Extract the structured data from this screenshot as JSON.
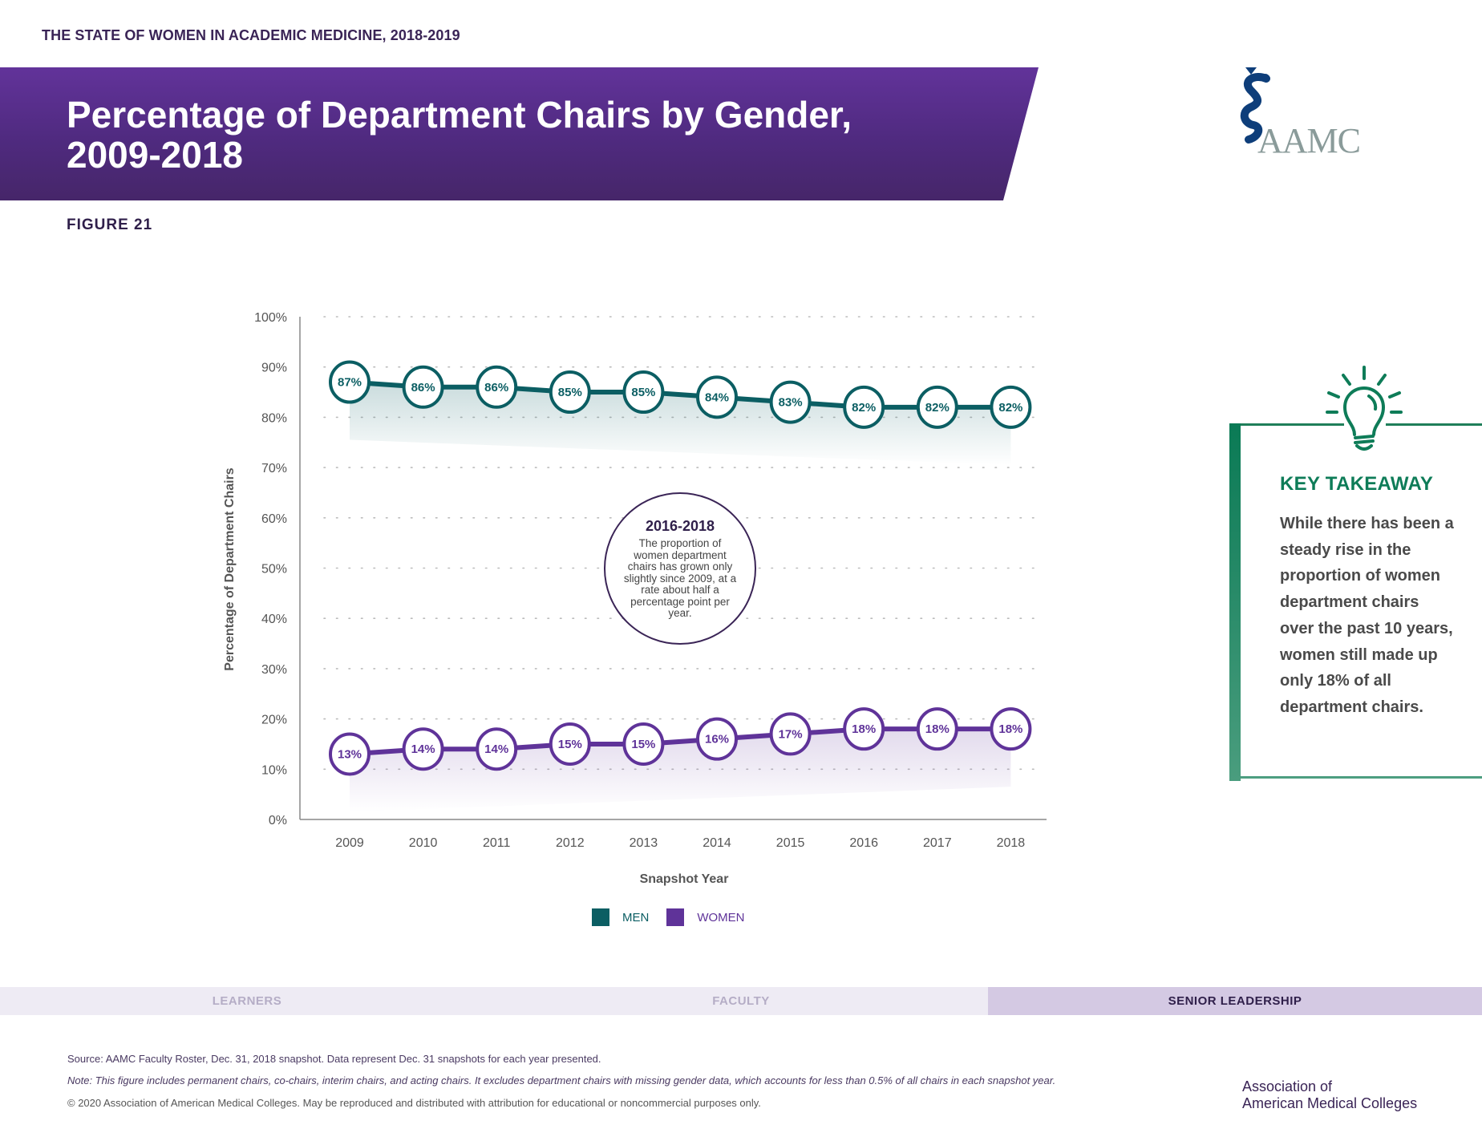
{
  "header": {
    "supertitle": "THE STATE OF WOMEN IN ACADEMIC MEDICINE, 2018-2019",
    "title": "Percentage of Department Chairs by Gender, 2009-2018",
    "figure_label": "FIGURE 21",
    "logo_text": "AAMC"
  },
  "colors": {
    "men": "#0b5e63",
    "women": "#5f3399",
    "banner": "#5a2f8c",
    "takeaway": "#0e7c58"
  },
  "chart_data": {
    "type": "line",
    "title": "Percentage of Department Chairs by Gender, 2009-2018",
    "xlabel": "Snapshot Year",
    "ylabel": "Percentage of Department Chairs",
    "categories": [
      "2009",
      "2010",
      "2011",
      "2012",
      "2013",
      "2014",
      "2015",
      "2016",
      "2017",
      "2018"
    ],
    "yticks": [
      "0%",
      "10%",
      "20%",
      "30%",
      "40%",
      "50%",
      "60%",
      "70%",
      "80%",
      "90%",
      "100%"
    ],
    "ylim": [
      0,
      100
    ],
    "grid": true,
    "legend_position": "bottom-center",
    "series": [
      {
        "name": "MEN",
        "values": [
          87,
          86,
          86,
          85,
          85,
          84,
          83,
          82,
          82,
          82
        ],
        "labels": [
          "87%",
          "86%",
          "86%",
          "85%",
          "85%",
          "84%",
          "83%",
          "82%",
          "82%",
          "82%"
        ]
      },
      {
        "name": "WOMEN",
        "values": [
          13,
          14,
          14,
          15,
          15,
          16,
          17,
          18,
          18,
          18
        ],
        "labels": [
          "13%",
          "14%",
          "14%",
          "15%",
          "15%",
          "16%",
          "17%",
          "18%",
          "18%",
          "18%"
        ]
      }
    ],
    "annotation": {
      "title": "2016-2018",
      "text": "The proportion of women department chairs has grown only slightly since 2009, at a rate about half a percentage point per year."
    }
  },
  "legend": {
    "men": "MEN",
    "women": "WOMEN"
  },
  "takeaway": {
    "title": "KEY TAKEAWAY",
    "body": "While there has been a steady rise in the proportion of women department chairs over the past 10 years, women still made up only 18% of all department chairs."
  },
  "tabs": [
    {
      "label": "LEARNERS",
      "active": false
    },
    {
      "label": "FACULTY",
      "active": false
    },
    {
      "label": "SENIOR LEADERSHIP",
      "active": true
    }
  ],
  "footer": {
    "source": "Source: AAMC Faculty Roster, Dec. 31, 2018 snapshot. Data represent Dec. 31 snapshots for each year presented.",
    "note": "Note: This figure includes permanent chairs, co-chairs, interim chairs, and acting chairs. It excludes department chairs with missing gender data, which accounts for less than 0.5% of all chairs in each snapshot year.",
    "copyright": "© 2020 Association of American Medical Colleges. May be reproduced and distributed with attribution for educational or noncommercial purposes only.",
    "org_line1": "Association of",
    "org_line2": "American Medical Colleges"
  }
}
